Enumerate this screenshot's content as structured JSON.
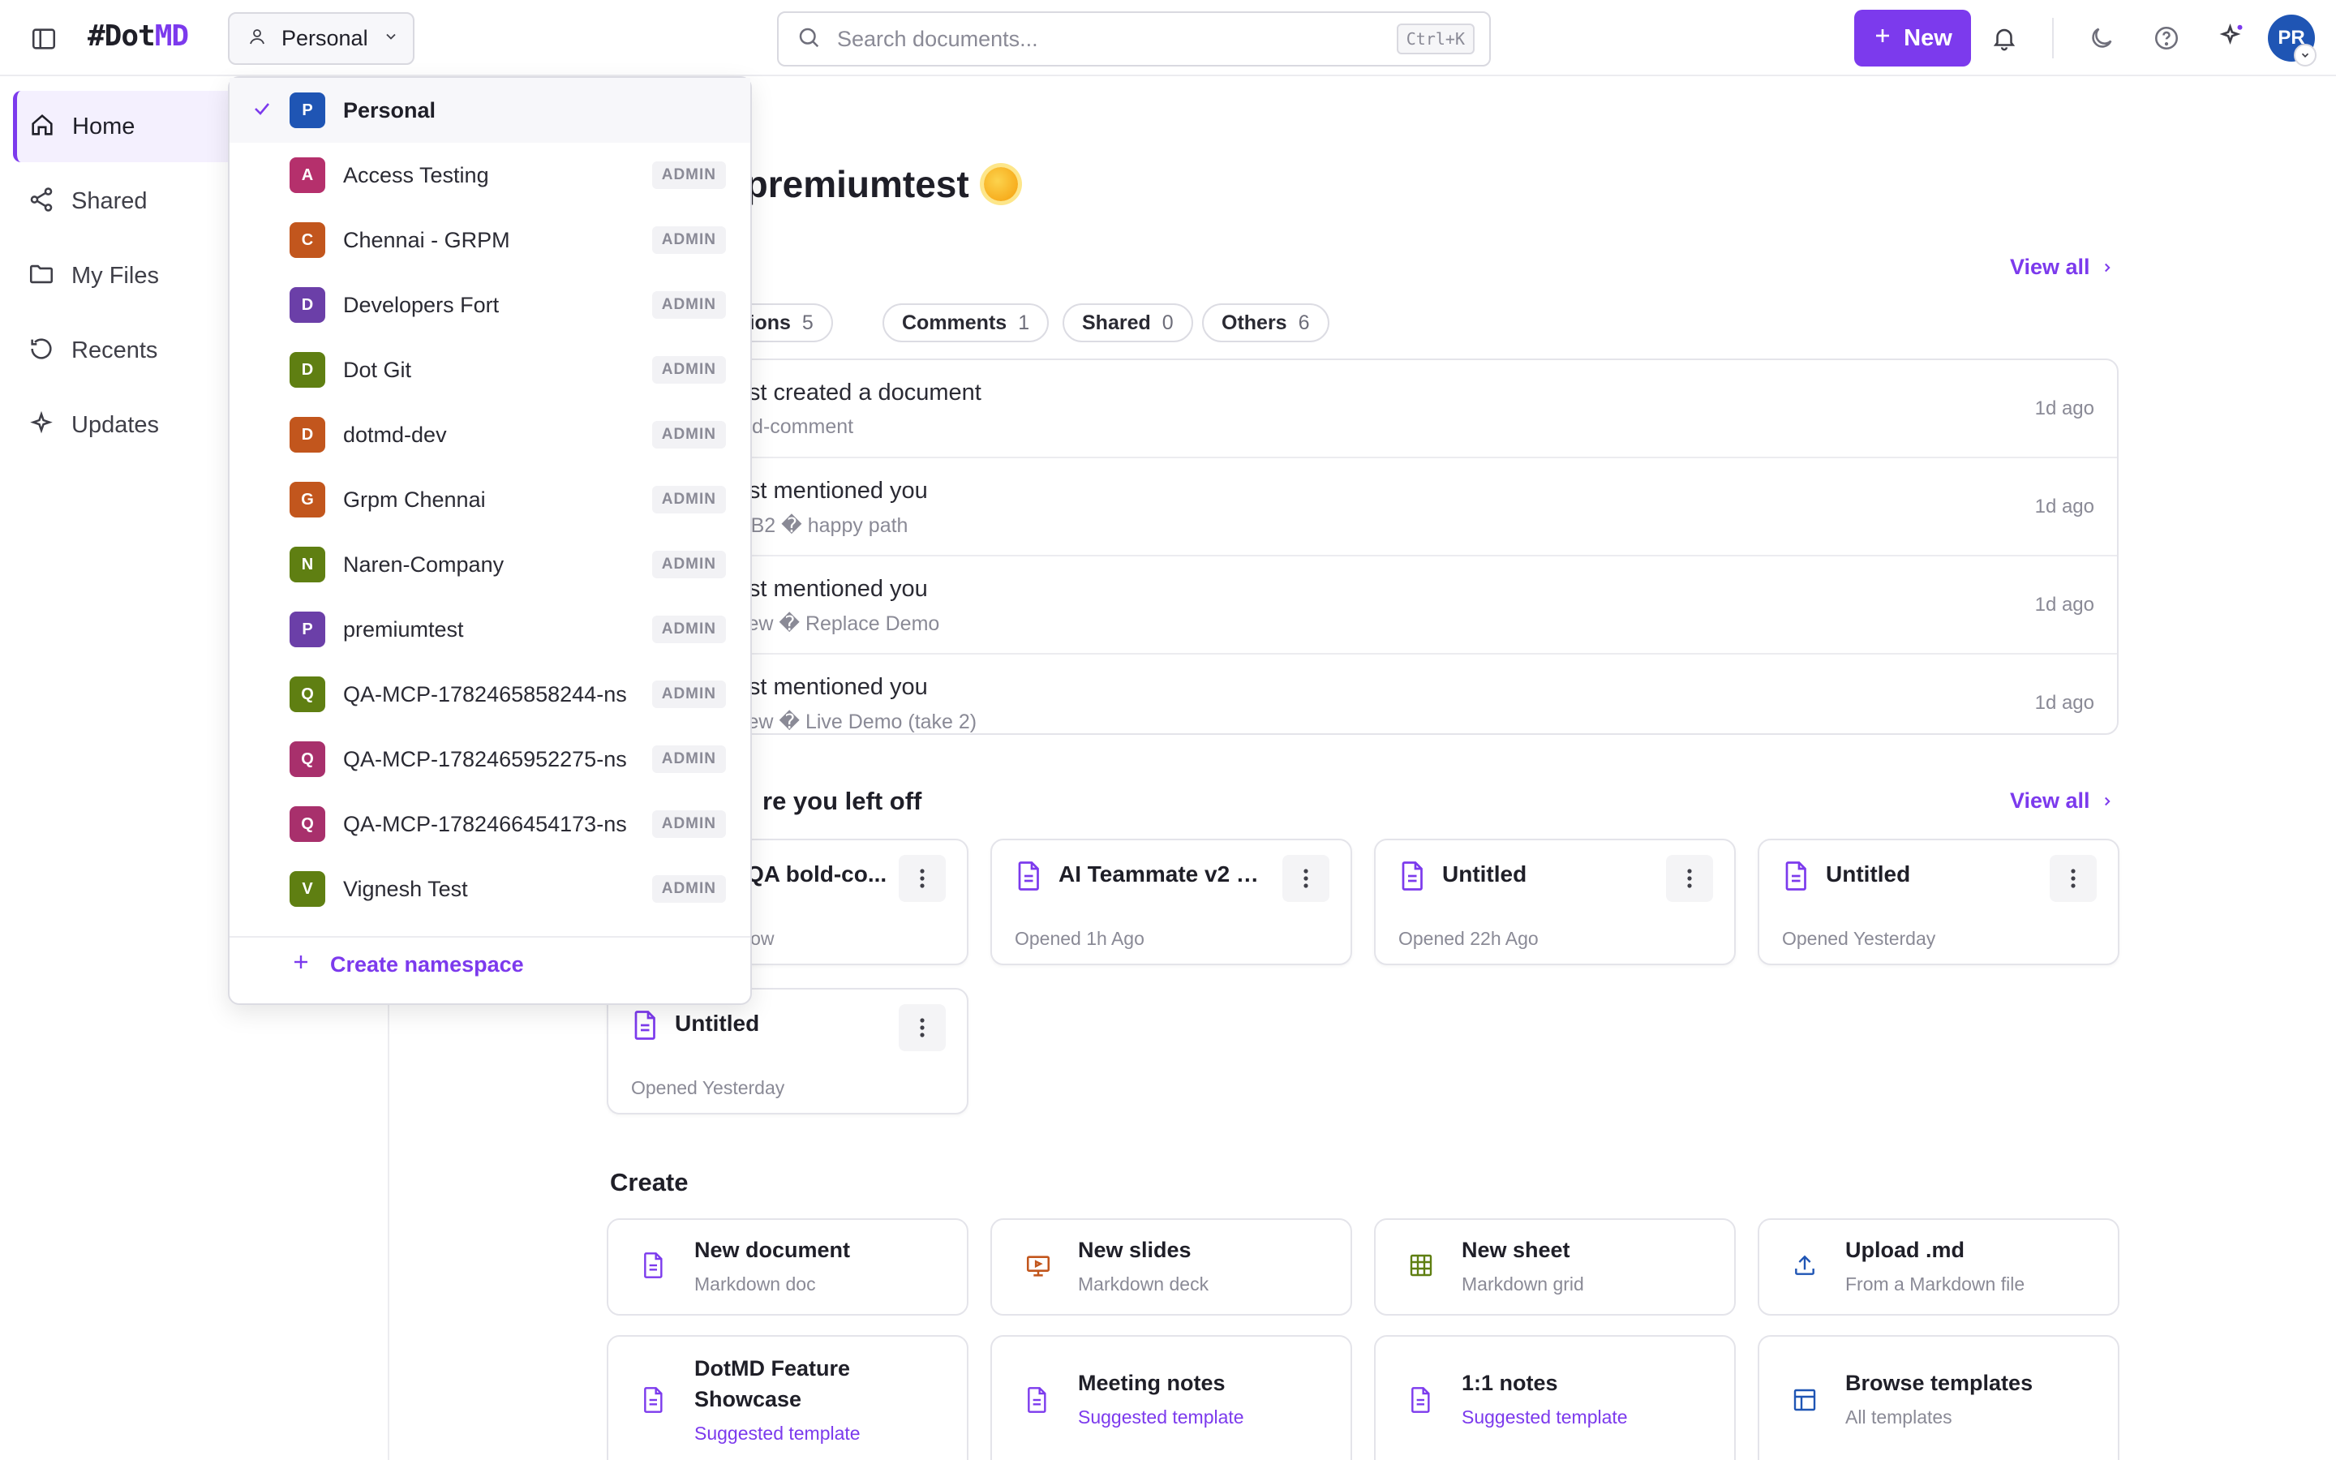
{
  "app": {
    "logo_hash": "#Dot",
    "logo_md": "MD"
  },
  "topbar": {
    "namespace_label": "Personal",
    "search_placeholder": "Search documents...",
    "search_shortcut": "Ctrl+K",
    "new_label": "New",
    "avatar_initials": "PR"
  },
  "sidebar": {
    "items": [
      {
        "label": "Home",
        "icon": "home-icon"
      },
      {
        "label": "Shared",
        "icon": "share-icon"
      },
      {
        "label": "My Files",
        "icon": "folder-icon"
      },
      {
        "label": "Recents",
        "icon": "history-icon"
      },
      {
        "label": "Updates",
        "icon": "sparkle-icon"
      }
    ]
  },
  "main": {
    "greeting": "orning, premiumtest",
    "activity": {
      "view_all": "View all",
      "filters": [
        {
          "label": "entions",
          "count": "5"
        },
        {
          "label": "Comments",
          "count": "1"
        },
        {
          "label": "Shared",
          "count": "0"
        },
        {
          "label": "Others",
          "count": "6"
        }
      ],
      "rows": [
        {
          "title": "iumtest created a document",
          "subtitle": "QA bold-comment",
          "time": "1d ago"
        },
        {
          "title": "iumtest mentioned you",
          "subtitle": "Demo B2 � happy path",
          "time": "1d ago"
        },
        {
          "title": "iumtest mentioned you",
          "subtitle": "s Review � Replace Demo",
          "time": "1d ago"
        },
        {
          "title": "iumtest mentioned you",
          "subtitle": "s Review � Live Demo (take 2)",
          "time": "1d ago"
        }
      ]
    },
    "recent": {
      "title": "re you left off",
      "view_all": "View all",
      "cards": [
        {
          "title": "QA bold-co...",
          "subtitle": "low"
        },
        {
          "title": "AI Teammate v2 —...",
          "subtitle": "Opened 1h Ago"
        },
        {
          "title": "Untitled",
          "subtitle": "Opened 22h Ago"
        },
        {
          "title": "Untitled",
          "subtitle": "Opened Yesterday"
        },
        {
          "title": "Untitled",
          "subtitle": "Opened Yesterday"
        }
      ]
    },
    "create": {
      "title": "Create",
      "items": [
        {
          "title": "New document",
          "subtitle": "Markdown doc",
          "icon": "document-icon"
        },
        {
          "title": "New slides",
          "subtitle": "Markdown deck",
          "icon": "slides-icon"
        },
        {
          "title": "New sheet",
          "subtitle": "Markdown grid",
          "icon": "grid-icon"
        },
        {
          "title": "Upload .md",
          "subtitle": "From a Markdown file",
          "icon": "upload-icon"
        },
        {
          "title": "DotMD Feature Showcase",
          "subtitle": "Suggested template",
          "icon": "document-icon"
        },
        {
          "title": "Meeting notes",
          "subtitle": "Suggested template",
          "icon": "document-icon"
        },
        {
          "title": "1:1 notes",
          "subtitle": "Suggested template",
          "icon": "document-icon"
        },
        {
          "title": "Browse templates",
          "subtitle": "All templates",
          "icon": "template-icon"
        }
      ]
    }
  },
  "dropdown": {
    "items": [
      {
        "letter": "P",
        "name": "Personal",
        "role": "",
        "color": "#1f55b4"
      },
      {
        "letter": "A",
        "name": "Access Testing",
        "role": "ADMIN",
        "color": "#b5306c"
      },
      {
        "letter": "C",
        "name": "Chennai - GRPM",
        "role": "ADMIN",
        "color": "#c2561d"
      },
      {
        "letter": "D",
        "name": "Developers Fort",
        "role": "ADMIN",
        "color": "#6b3fa8"
      },
      {
        "letter": "D",
        "name": "Dot Git",
        "role": "ADMIN",
        "color": "#5f7f12"
      },
      {
        "letter": "D",
        "name": "dotmd-dev",
        "role": "ADMIN",
        "color": "#c2561d"
      },
      {
        "letter": "G",
        "name": "Grpm Chennai",
        "role": "ADMIN",
        "color": "#c2561d"
      },
      {
        "letter": "N",
        "name": "Naren-Company",
        "role": "ADMIN",
        "color": "#5f7f12"
      },
      {
        "letter": "P",
        "name": "premiumtest",
        "role": "ADMIN",
        "color": "#6b3fa8"
      },
      {
        "letter": "Q",
        "name": "QA-MCP-1782465858244-ns",
        "role": "ADMIN",
        "color": "#5f7f12"
      },
      {
        "letter": "Q",
        "name": "QA-MCP-1782465952275-ns",
        "role": "ADMIN",
        "color": "#a8306c"
      },
      {
        "letter": "Q",
        "name": "QA-MCP-1782466454173-ns",
        "role": "ADMIN",
        "color": "#a8306c"
      },
      {
        "letter": "V",
        "name": "Vignesh Test",
        "role": "ADMIN",
        "color": "#5f7f12"
      }
    ],
    "create_label": "Create namespace"
  },
  "colors": {
    "accent": "#7c3aed",
    "avatar": "#1f55b4"
  }
}
